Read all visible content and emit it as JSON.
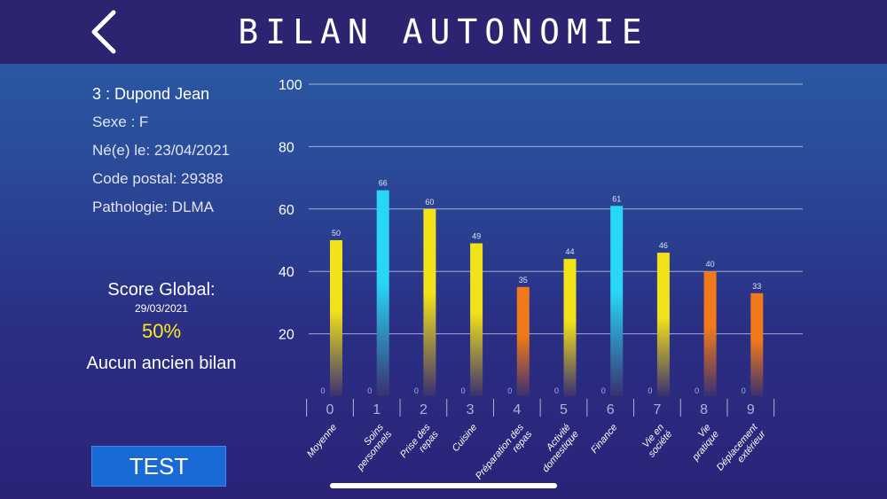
{
  "header": {
    "title": "BILAN AUTONOMIE",
    "back_icon": "chevron-left-icon"
  },
  "patient": {
    "name": "3 : Dupond Jean",
    "sex": "Sexe : F",
    "birth": "Né(e) le: 23/04/2021",
    "postal": "Code postal: 29388",
    "pathology": "Pathologie: DLMA"
  },
  "score": {
    "label": "Score Global:",
    "date": "29/03/2021",
    "value": "50%",
    "no_history": "Aucun ancien bilan"
  },
  "actions": {
    "test_label": "TEST"
  },
  "colors": {
    "yellow": "#f2e21a",
    "cyan": "#29d6f5",
    "orange": "#f07a1a"
  },
  "chart_data": {
    "type": "bar",
    "categories": [
      "0",
      "1",
      "2",
      "3",
      "4",
      "5",
      "6",
      "7",
      "8",
      "9"
    ],
    "category_names": [
      "Moyenne",
      "Soins personnels",
      "Prise des repas",
      "Cuisine",
      "Préparation des repas",
      "Activité domestique",
      "Finance",
      "Vie en société",
      "Vie pratique",
      "Déplacement extérieur"
    ],
    "values": [
      50,
      66,
      60,
      49,
      35,
      44,
      61,
      46,
      40,
      33
    ],
    "base_labels": [
      "0",
      "0",
      "0",
      "0",
      "0",
      "0",
      "0",
      "0",
      "0",
      "0"
    ],
    "bar_colors": [
      "yellow",
      "cyan",
      "yellow",
      "yellow",
      "orange",
      "yellow",
      "cyan",
      "yellow",
      "orange",
      "orange"
    ],
    "yticks": [
      20,
      40,
      60,
      80,
      100
    ],
    "ylim": [
      0,
      100
    ],
    "grid": true
  }
}
